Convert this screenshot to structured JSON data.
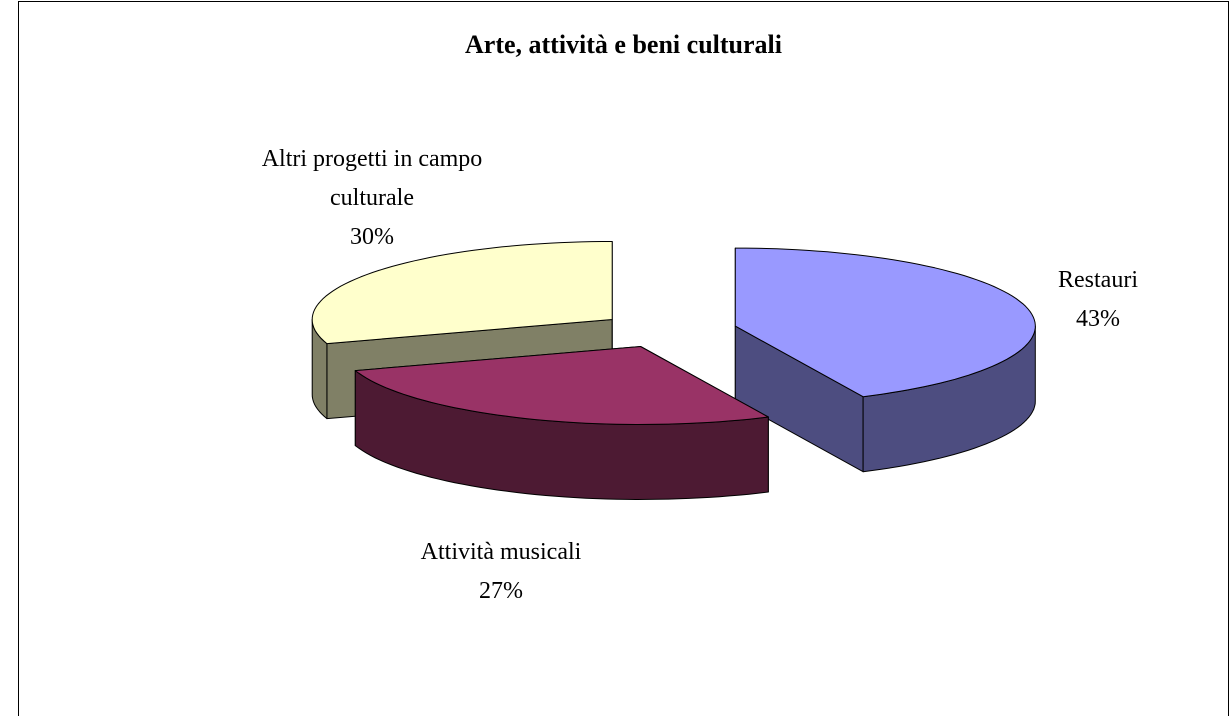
{
  "chart_data": {
    "type": "pie3d",
    "title": "Arte, attività e beni culturali",
    "categories": [
      "Restauri",
      "Attività musicali",
      "Altri progetti in campo culturale"
    ],
    "values": [
      43,
      27,
      30
    ],
    "value_labels": [
      "43%",
      "27%",
      "30%"
    ],
    "colors": [
      "#9999ff",
      "#993366",
      "#ffffcc"
    ]
  }
}
